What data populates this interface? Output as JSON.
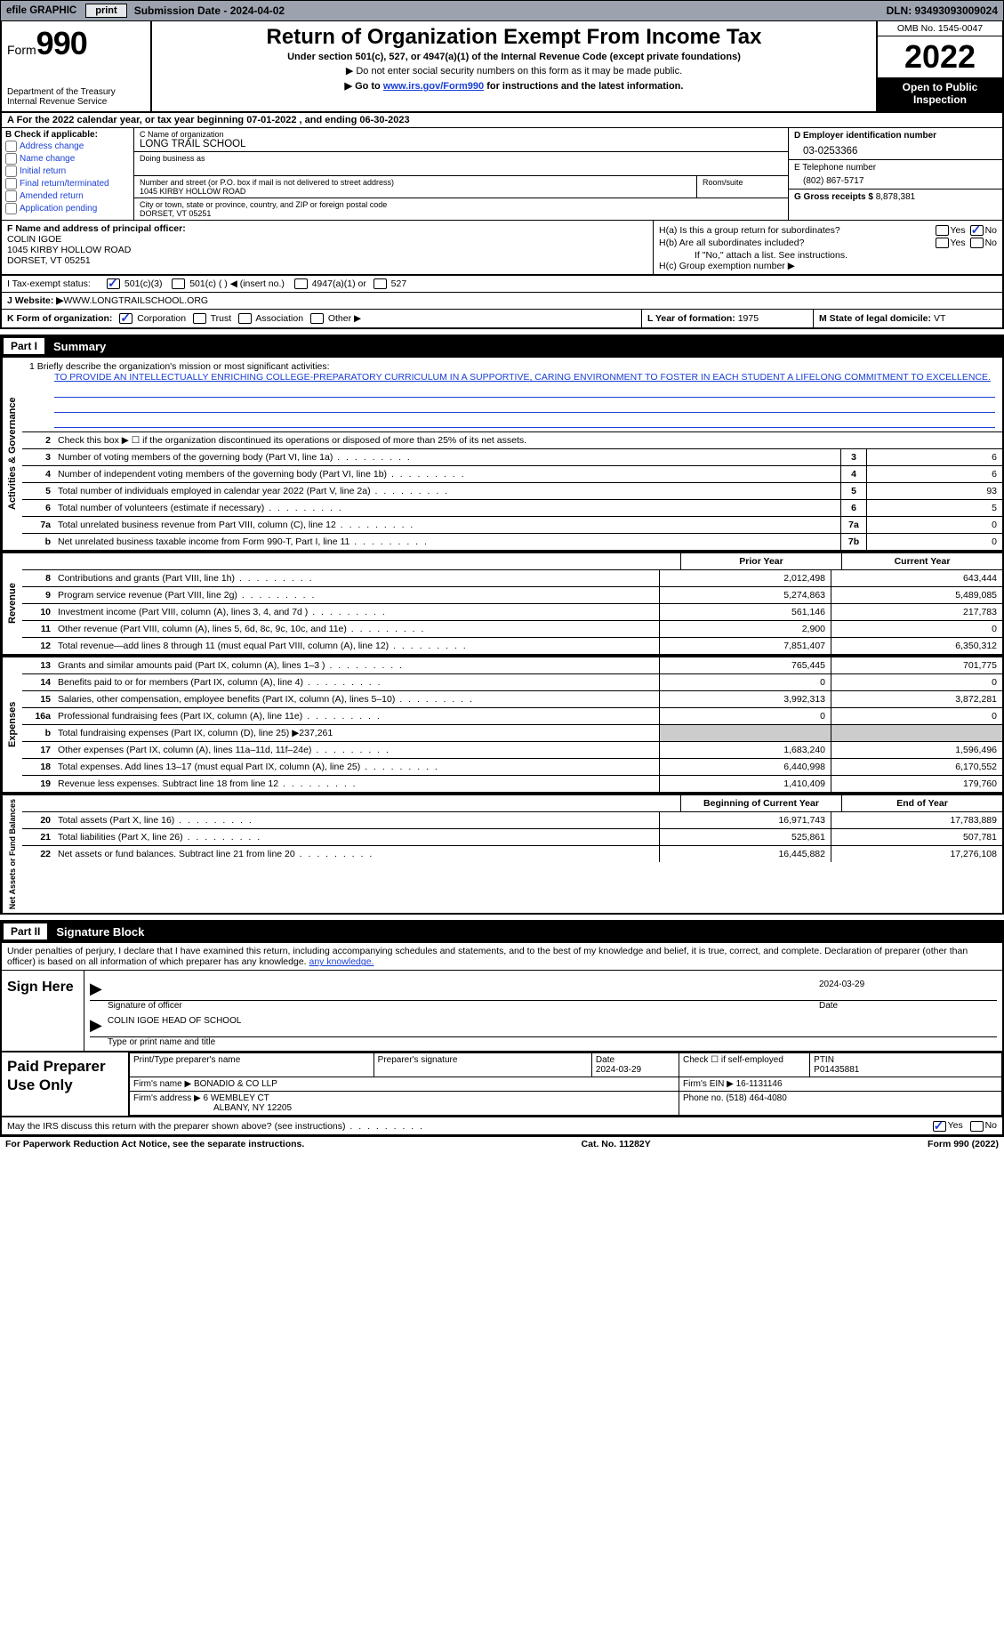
{
  "topbar": {
    "efile": "efile GRAPHIC",
    "print_btn": "print",
    "submission": "Submission Date - 2024-04-02",
    "dln": "DLN: 93493093009024"
  },
  "header": {
    "form_word": "Form",
    "form_num": "990",
    "dept": "Department of the Treasury",
    "irs": "Internal Revenue Service",
    "title": "Return of Organization Exempt From Income Tax",
    "sub1": "Under section 501(c), 527, or 4947(a)(1) of the Internal Revenue Code (except private foundations)",
    "sub2": "▶ Do not enter social security numbers on this form as it may be made public.",
    "sub3_pre": "▶ Go to ",
    "sub3_link": "www.irs.gov/Form990",
    "sub3_post": " for instructions and the latest information.",
    "omb": "OMB No. 1545-0047",
    "year": "2022",
    "inspect": "Open to Public Inspection"
  },
  "row_a": "A For the 2022 calendar year, or tax year beginning 07-01-2022    , and ending 06-30-2023",
  "box_b": {
    "hdr": "B Check if applicable:",
    "items": [
      "Address change",
      "Name change",
      "Initial return",
      "Final return/terminated",
      "Amended return",
      "Application pending"
    ]
  },
  "box_c": {
    "name_lbl": "C Name of organization",
    "name": "LONG TRAIL SCHOOL",
    "dba_lbl": "Doing business as",
    "addr_lbl": "Number and street (or P.O. box if mail is not delivered to street address)",
    "addr": "1045 KIRBY HOLLOW ROAD",
    "room_lbl": "Room/suite",
    "city_lbl": "City or town, state or province, country, and ZIP or foreign postal code",
    "city": "DORSET, VT  05251"
  },
  "box_d": {
    "ein_lbl": "D Employer identification number",
    "ein": "03-0253366",
    "tel_lbl": "E Telephone number",
    "tel": "(802) 867-5717",
    "gross_lbl": "G Gross receipts $",
    "gross": "8,878,381"
  },
  "box_f": {
    "lbl": "F  Name and address of principal officer:",
    "name": "COLIN IGOE",
    "addr": "1045 KIRBY HOLLOW ROAD",
    "city": "DORSET, VT  05251"
  },
  "box_h": {
    "ha": "H(a)  Is this a group return for subordinates?",
    "hb": "H(b)  Are all subordinates included?",
    "hb_note": "If \"No,\" attach a list. See instructions.",
    "hc": "H(c)  Group exemption number ▶"
  },
  "tax_status": {
    "lbl": "I  Tax-exempt status:",
    "opt1": "501(c)(3)",
    "opt2": "501(c) (  ) ◀ (insert no.)",
    "opt3": "4947(a)(1) or",
    "opt4": "527"
  },
  "website": {
    "lbl": "J  Website: ▶",
    "val": " WWW.LONGTRAILSCHOOL.ORG"
  },
  "k": {
    "lbl": "K Form of organization:",
    "corp": "Corporation",
    "trust": "Trust",
    "assoc": "Association",
    "other": "Other ▶"
  },
  "l": {
    "lbl": "L Year of formation:",
    "val": "1975"
  },
  "m": {
    "lbl": "M State of legal domicile:",
    "val": "VT"
  },
  "parts": {
    "p1_num": "Part I",
    "p1_ttl": "Summary",
    "p2_num": "Part II",
    "p2_ttl": "Signature Block"
  },
  "mission": {
    "intro": "1   Briefly describe the organization's mission or most significant activities:",
    "text": "TO PROVIDE AN INTELLECTUALLY ENRICHING COLLEGE-PREPARATORY CURRICULUM IN A SUPPORTIVE, CARING ENVIRONMENT TO FOSTER IN EACH STUDENT A LIFELONG COMMITMENT TO EXCELLENCE."
  },
  "line2": "Check this box ▶ ☐ if the organization discontinued its operations or disposed of more than 25% of its net assets.",
  "vlabels": {
    "ag": "Activities & Governance",
    "rev": "Revenue",
    "exp": "Expenses",
    "net": "Net Assets or Fund Balances"
  },
  "gov_lines": [
    {
      "n": "3",
      "d": "Number of voting members of the governing body (Part VI, line 1a)",
      "box": "3",
      "v": "6"
    },
    {
      "n": "4",
      "d": "Number of independent voting members of the governing body (Part VI, line 1b)",
      "box": "4",
      "v": "6"
    },
    {
      "n": "5",
      "d": "Total number of individuals employed in calendar year 2022 (Part V, line 2a)",
      "box": "5",
      "v": "93"
    },
    {
      "n": "6",
      "d": "Total number of volunteers (estimate if necessary)",
      "box": "6",
      "v": "5"
    },
    {
      "n": "7a",
      "d": "Total unrelated business revenue from Part VIII, column (C), line 12",
      "box": "7a",
      "v": "0"
    },
    {
      "n": "b",
      "d": "Net unrelated business taxable income from Form 990-T, Part I, line 11",
      "box": "7b",
      "v": "0"
    }
  ],
  "col_hdrs": {
    "prior": "Prior Year",
    "current": "Current Year",
    "begin": "Beginning of Current Year",
    "end": "End of Year"
  },
  "rev_lines": [
    {
      "n": "8",
      "d": "Contributions and grants (Part VIII, line 1h)",
      "p": "2,012,498",
      "c": "643,444"
    },
    {
      "n": "9",
      "d": "Program service revenue (Part VIII, line 2g)",
      "p": "5,274,863",
      "c": "5,489,085"
    },
    {
      "n": "10",
      "d": "Investment income (Part VIII, column (A), lines 3, 4, and 7d )",
      "p": "561,146",
      "c": "217,783"
    },
    {
      "n": "11",
      "d": "Other revenue (Part VIII, column (A), lines 5, 6d, 8c, 9c, 10c, and 11e)",
      "p": "2,900",
      "c": "0"
    },
    {
      "n": "12",
      "d": "Total revenue—add lines 8 through 11 (must equal Part VIII, column (A), line 12)",
      "p": "7,851,407",
      "c": "6,350,312"
    }
  ],
  "exp_lines": [
    {
      "n": "13",
      "d": "Grants and similar amounts paid (Part IX, column (A), lines 1–3 )",
      "p": "765,445",
      "c": "701,775"
    },
    {
      "n": "14",
      "d": "Benefits paid to or for members (Part IX, column (A), line 4)",
      "p": "0",
      "c": "0"
    },
    {
      "n": "15",
      "d": "Salaries, other compensation, employee benefits (Part IX, column (A), lines 5–10)",
      "p": "3,992,313",
      "c": "3,872,281"
    },
    {
      "n": "16a",
      "d": "Professional fundraising fees (Part IX, column (A), line 11e)",
      "p": "0",
      "c": "0"
    },
    {
      "n": "b",
      "d": "Total fundraising expenses (Part IX, column (D), line 25) ▶237,261",
      "p": "",
      "c": "",
      "shaded": true
    },
    {
      "n": "17",
      "d": "Other expenses (Part IX, column (A), lines 11a–11d, 11f–24e)",
      "p": "1,683,240",
      "c": "1,596,496"
    },
    {
      "n": "18",
      "d": "Total expenses. Add lines 13–17 (must equal Part IX, column (A), line 25)",
      "p": "6,440,998",
      "c": "6,170,552"
    },
    {
      "n": "19",
      "d": "Revenue less expenses. Subtract line 18 from line 12",
      "p": "1,410,409",
      "c": "179,760"
    }
  ],
  "net_lines": [
    {
      "n": "20",
      "d": "Total assets (Part X, line 16)",
      "p": "16,971,743",
      "c": "17,783,889"
    },
    {
      "n": "21",
      "d": "Total liabilities (Part X, line 26)",
      "p": "525,861",
      "c": "507,781"
    },
    {
      "n": "22",
      "d": "Net assets or fund balances. Subtract line 21 from line 20",
      "p": "16,445,882",
      "c": "17,276,108"
    }
  ],
  "sig": {
    "intro": "Under penalties of perjury, I declare that I have examined this return, including accompanying schedules and statements, and to the best of my knowledge and belief, it is true, correct, and complete. Declaration of preparer (other than officer) is based on all information of which preparer has any knowledge.",
    "sign_lbl": "Sign Here",
    "sig_lbl": "Signature of officer",
    "date_lbl": "Date",
    "date": "2024-03-29",
    "name_title": "COLIN IGOE  HEAD OF SCHOOL",
    "type_lbl": "Type or print name and title"
  },
  "prep": {
    "lbl": "Paid Preparer Use Only",
    "c1": "Print/Type preparer's name",
    "c2": "Preparer's signature",
    "c3": "Date",
    "date": "2024-03-29",
    "c4_lbl": "Check ☐ if self-employed",
    "c5_lbl": "PTIN",
    "ptin": "P01435881",
    "firm_lbl": "Firm's name    ▶",
    "firm": "BONADIO & CO LLP",
    "ein_lbl": "Firm's EIN ▶",
    "ein": "16-1131146",
    "addr_lbl": "Firm's address ▶",
    "addr1": "6 WEMBLEY CT",
    "addr2": "ALBANY, NY  12205",
    "phone_lbl": "Phone no.",
    "phone": "(518) 464-4080"
  },
  "discuss": "May the IRS discuss this return with the preparer shown above? (see instructions)",
  "footer": {
    "left": "For Paperwork Reduction Act Notice, see the separate instructions.",
    "mid": "Cat. No. 11282Y",
    "right": "Form 990 (2022)"
  },
  "colors": {
    "link": "#1a3fd6",
    "topbar_bg": "#9ca3af",
    "btn_bg": "#e5e7eb",
    "shaded": "#cccccc"
  }
}
